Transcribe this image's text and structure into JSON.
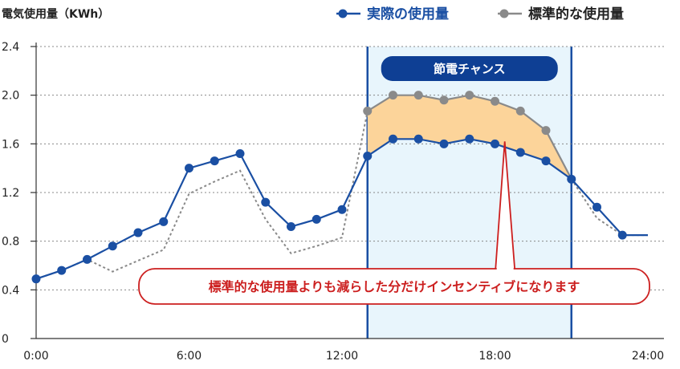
{
  "colors": {
    "actual": "#1a4fa3",
    "standard": "#8a8a8a",
    "band_fill": "#e8f5fc",
    "band_border": "#1a4fa3",
    "saving_fill": "#fcd49a",
    "badge_fill": "#0e3f94",
    "callout": "#cc1f1f",
    "grid": "#888888"
  },
  "chart_data": {
    "type": "line",
    "ylabel": "電気使用量（KWh）",
    "xlabel": "",
    "title": "",
    "xlim": [
      0,
      24
    ],
    "ylim": [
      0,
      2.4
    ],
    "y_ticks": [
      0,
      0.4,
      0.8,
      1.2,
      1.6,
      2.0,
      2.4
    ],
    "y_tick_labels": [
      "0",
      "0.4",
      "0.8",
      "1.2",
      "1.6",
      "2.0",
      "2.4"
    ],
    "x_ticks": [
      0,
      6,
      12,
      18,
      24
    ],
    "x_tick_labels": [
      "0:00",
      "6:00",
      "12:00",
      "18:00",
      "24:00"
    ],
    "grid": "horizontal dotted",
    "legend_position": "top-right",
    "series": [
      {
        "name": "実際の使用量",
        "style": "solid line with markers",
        "x": [
          0,
          1,
          2,
          3,
          4,
          5,
          6,
          7,
          8,
          9,
          10,
          11,
          12,
          13,
          14,
          15,
          16,
          17,
          18,
          19,
          20,
          21,
          22,
          23,
          24
        ],
        "y": [
          0.49,
          0.56,
          0.65,
          0.76,
          0.87,
          0.96,
          1.4,
          1.46,
          1.52,
          1.12,
          0.92,
          0.98,
          1.06,
          1.5,
          1.64,
          1.64,
          1.6,
          1.64,
          1.6,
          1.53,
          1.46,
          1.31,
          1.08,
          0.85,
          0.85
        ]
      },
      {
        "name": "標準的な使用量",
        "style": "dotted line outside window, solid line with markers inside window",
        "x": [
          0,
          1,
          2,
          3,
          4,
          5,
          6,
          7,
          8,
          9,
          10,
          11,
          12,
          13,
          14,
          15,
          16,
          17,
          18,
          19,
          20,
          21,
          22,
          23,
          24
        ],
        "y": [
          0.49,
          0.56,
          0.65,
          0.55,
          0.64,
          0.73,
          1.19,
          1.29,
          1.38,
          0.98,
          0.7,
          0.76,
          0.83,
          1.87,
          2.0,
          2.0,
          1.96,
          2.0,
          1.95,
          1.87,
          1.71,
          1.31,
          0.99,
          0.85,
          0.85
        ]
      }
    ],
    "window": {
      "x_start": 13,
      "x_end": 21,
      "label": "節電チャンス"
    },
    "annotation": "標準的な使用量よりも減らした分だけインセンティブになります"
  }
}
